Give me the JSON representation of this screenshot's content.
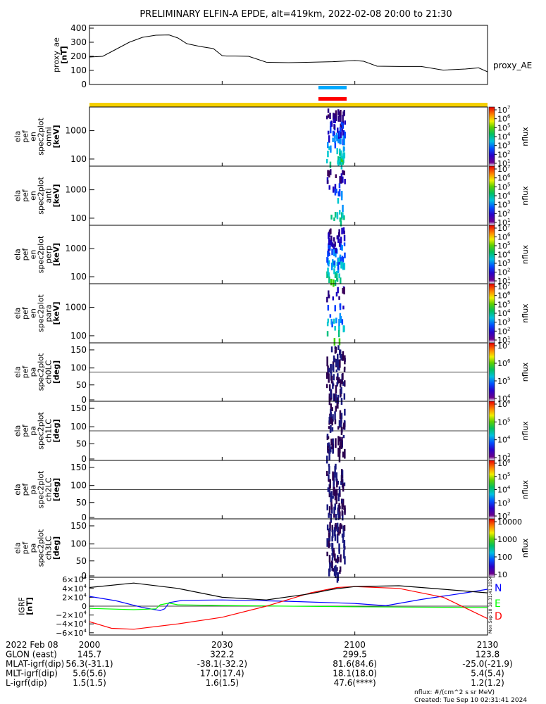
{
  "title": "PRELIMINARY ELFIN-A EPDE, alt=419km, 2022-02-08 20:00 to 21:30",
  "chart_data": [
    {
      "type": "line",
      "ylabel": [
        "proxy_ae",
        "[nT]"
      ],
      "ylim": [
        0,
        420
      ],
      "yticks": [
        "400",
        "300",
        "200",
        "100",
        "0"
      ],
      "series": [
        {
          "name": "proxy_AE",
          "x_minutes": [
            0,
            3,
            6,
            9,
            12,
            15,
            18,
            20,
            22,
            25,
            28,
            30,
            31,
            33,
            36,
            40,
            45,
            50,
            55,
            60,
            62,
            65,
            70,
            75,
            80,
            85,
            88,
            90
          ],
          "values": [
            195,
            200,
            250,
            300,
            335,
            350,
            352,
            330,
            290,
            270,
            255,
            205,
            202,
            202,
            200,
            158,
            155,
            158,
            162,
            170,
            165,
            130,
            128,
            128,
            102,
            110,
            118,
            90
          ]
        }
      ]
    },
    {
      "type": "heatmap",
      "panels": [
        {
          "ylabel": [
            "ela",
            "pef",
            "en",
            "spec2plot",
            "omni",
            "[keV]"
          ],
          "yticks": [
            "1000",
            "100"
          ]
        },
        {
          "ylabel": [
            "ela",
            "pef",
            "en",
            "spec2plot",
            "anti",
            "[keV]"
          ],
          "yticks": [
            "1000",
            "100"
          ]
        },
        {
          "ylabel": [
            "ela",
            "pef",
            "en",
            "spec2plot",
            "perp",
            "[keV]"
          ],
          "yticks": [
            "1000",
            "100"
          ]
        },
        {
          "ylabel": [
            "ela",
            "pef",
            "en",
            "spec2plot",
            "para",
            "[keV]"
          ],
          "yticks": [
            "1000",
            "100"
          ]
        },
        {
          "ylabel": [
            "ela",
            "pef",
            "pa",
            "spec2plot",
            "ch0LC",
            "[deg]"
          ],
          "yticks": [
            "150",
            "100",
            "50",
            "0"
          ]
        },
        {
          "ylabel": [
            "ela",
            "pef",
            "pa",
            "spec2plot",
            "ch1LC",
            "[deg]"
          ],
          "yticks": [
            "150",
            "100",
            "50",
            "0"
          ]
        },
        {
          "ylabel": [
            "ela",
            "pef",
            "pa",
            "spec2plot",
            "ch2LC",
            "[deg]"
          ],
          "yticks": [
            "150",
            "100",
            "50",
            "0"
          ]
        },
        {
          "ylabel": [
            "ela",
            "pef",
            "pa",
            "spec2plot",
            "ch3LC",
            "[deg]"
          ],
          "yticks": [
            "150",
            "100",
            "50",
            "0"
          ]
        }
      ],
      "colorbars": [
        {
          "label": "nflux",
          "ticks": [
            "10",
            "10",
            "10",
            "10",
            "10",
            "10",
            "10"
          ],
          "exps": [
            "7",
            "6",
            "5",
            "4",
            "3",
            "2",
            "1"
          ]
        },
        {
          "label": "nflux",
          "ticks": [
            "10",
            "10",
            "10",
            "10",
            "10",
            "10",
            "10"
          ],
          "exps": [
            "7",
            "6",
            "5",
            "4",
            "3",
            "2",
            "1"
          ]
        },
        {
          "label": "nflux",
          "ticks": [
            "10",
            "10",
            "10",
            "10",
            "10",
            "10",
            "10"
          ],
          "exps": [
            "7",
            "6",
            "5",
            "4",
            "3",
            "2",
            "1"
          ]
        },
        {
          "label": "nflux",
          "ticks": [
            "10",
            "10",
            "10",
            "10",
            "10",
            "10",
            "10"
          ],
          "exps": [
            "7",
            "6",
            "5",
            "4",
            "3",
            "2",
            "1"
          ]
        },
        {
          "label": "nflux",
          "ticks": [
            "10",
            "10",
            "10",
            "10"
          ],
          "exps": [
            "7",
            "6",
            "5",
            "4"
          ]
        },
        {
          "label": "nflux",
          "ticks": [
            "10",
            "10",
            "10",
            "10"
          ],
          "exps": [
            "6",
            "5",
            "4",
            "3"
          ]
        },
        {
          "label": "nflux",
          "ticks": [
            "10",
            "10",
            "10",
            "10",
            "10"
          ],
          "exps": [
            "6",
            "5",
            "4",
            "3",
            "2"
          ]
        },
        {
          "label": "nflux",
          "ticks": [
            "10000",
            "1000",
            "100",
            "10"
          ],
          "exps": [
            "",
            "",
            "",
            ""
          ]
        }
      ]
    },
    {
      "type": "line",
      "ylabel": [
        "IGRF",
        "[nT]"
      ],
      "yticks": [
        "6×10",
        "4×10",
        "2×10",
        "0",
        "−2×10",
        "−4×10",
        "−6×10"
      ],
      "ytick_exp": "4",
      "ylim": [
        -65000,
        65000
      ],
      "series": [
        {
          "name": "N",
          "color": "#0000ff",
          "x_minutes": [
            0,
            6,
            12,
            16,
            17,
            18,
            21,
            30,
            45,
            60,
            67,
            75,
            85,
            90
          ],
          "values": [
            22000,
            12000,
            -3000,
            -10000,
            -6000,
            8000,
            13000,
            14000,
            11000,
            6000,
            1000,
            15000,
            30000,
            38000
          ]
        },
        {
          "name": "E",
          "color": "#00ff00",
          "x_minutes": [
            0,
            10,
            15,
            16,
            18,
            20,
            30,
            40,
            50,
            60,
            70,
            80,
            90
          ],
          "values": [
            -5000,
            -8000,
            -6000,
            3000,
            7000,
            3000,
            1500,
            500,
            -500,
            -1500,
            -2000,
            -2500,
            -3000
          ]
        },
        {
          "name": "D",
          "color": "#ff0000",
          "x_minutes": [
            0,
            5,
            10,
            20,
            30,
            40,
            50,
            56,
            60,
            70,
            80,
            90
          ],
          "values": [
            -35000,
            -50000,
            -52000,
            -40000,
            -25000,
            0,
            30000,
            42000,
            44000,
            40000,
            20000,
            -28000
          ]
        },
        {
          "name": "",
          "color": "#000000",
          "x_minutes": [
            0,
            10,
            20,
            30,
            40,
            50,
            55,
            60,
            70,
            80,
            90
          ],
          "values": [
            42000,
            52000,
            40000,
            20000,
            14000,
            28000,
            38000,
            44000,
            46000,
            38000,
            30000
          ]
        }
      ],
      "legend": [
        "N",
        "E",
        "D"
      ],
      "side_text": "Mon Sep 10 18:31:41 2024"
    }
  ],
  "x_axis": {
    "tick_minutes": [
      0,
      30,
      60,
      90
    ],
    "tick_labels": [
      "2000",
      "2030",
      "2100",
      "2130"
    ],
    "rows": [
      {
        "label": "2022 Feb 08",
        "values": [
          "2000",
          "2030",
          "2100",
          "2130"
        ]
      },
      {
        "label": "GLON (east)",
        "values": [
          "145.7",
          "322.2",
          "299.5",
          "123.8"
        ]
      },
      {
        "label": "MLAT-igrf(dip)",
        "values": [
          "56.3(-31.1)",
          "-38.1(-32.2)",
          "81.6(84.6)",
          "-25.0(-21.9)"
        ]
      },
      {
        "label": "MLT-igrf(dip)",
        "values": [
          "5.6(5.6)",
          "17.0(17.4)",
          "18.1(18.0)",
          "5.4(5.4)"
        ]
      },
      {
        "label": "L-igrf(dip)",
        "values": [
          "1.5(1.5)",
          "1.6(1.5)",
          "47.6(****)",
          "1.2(1.2)"
        ]
      }
    ]
  },
  "footer": {
    "units": "nflux: #/(cm^2 s sr MeV)",
    "created": "Created: Tue Sep 10 02:31:41 2024"
  },
  "colors": {
    "sci_bar": "#00aaff",
    "red_bar": "#ff0000",
    "yellow_bar": "#f5d000"
  }
}
